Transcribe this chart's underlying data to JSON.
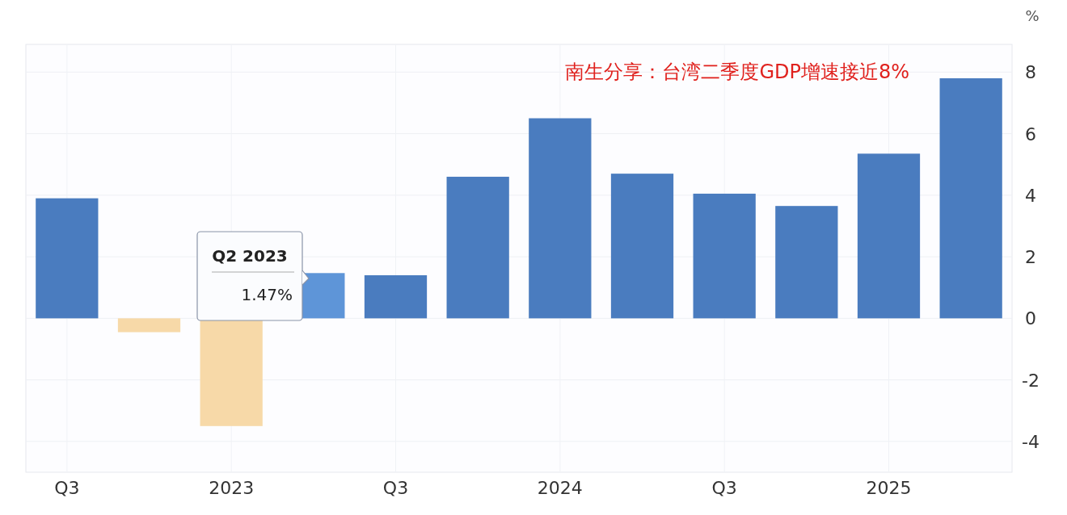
{
  "chart_data": {
    "type": "bar",
    "title": "南生分享：台湾二季度GDP增速接近8%",
    "ylabel": "%",
    "categories": [
      "Q3",
      null,
      "2023",
      null,
      "Q3",
      null,
      "2024",
      null,
      "Q3",
      null,
      "2025",
      null
    ],
    "values": [
      3.9,
      -0.45,
      -3.5,
      1.47,
      1.4,
      4.6,
      6.5,
      4.7,
      4.05,
      3.65,
      5.35,
      7.8
    ],
    "colors": [
      "#4a7cbf",
      "#f7d9a8",
      "#f7d9a8",
      "#5e95d8",
      "#4a7cbf",
      "#4a7cbf",
      "#4a7cbf",
      "#4a7cbf",
      "#4a7cbf",
      "#4a7cbf",
      "#4a7cbf",
      "#4a7cbf"
    ],
    "ylim": [
      -5,
      8.9
    ],
    "yticks": [
      -4,
      -2,
      0,
      2,
      4,
      6,
      8
    ],
    "grid": true,
    "annotations": [
      "Q2 2023",
      "1.47%"
    ]
  }
}
